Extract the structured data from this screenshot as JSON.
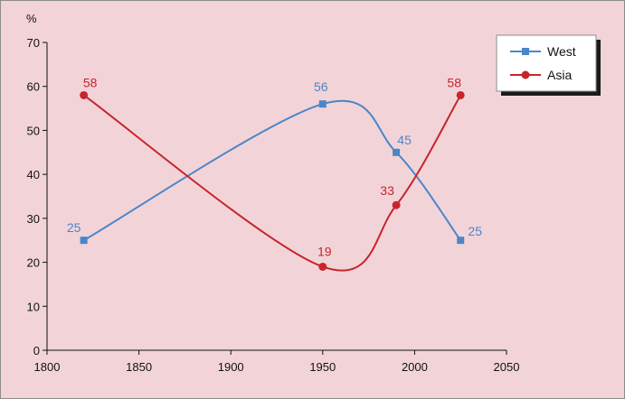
{
  "chart_data": {
    "type": "line",
    "ylabel": "%",
    "xlim": [
      1800,
      2050
    ],
    "ylim": [
      0,
      70
    ],
    "x_ticks": [
      1800,
      1850,
      1900,
      1950,
      2000,
      2050
    ],
    "y_ticks": [
      0,
      10,
      20,
      30,
      40,
      50,
      60,
      70
    ],
    "grid": false,
    "legend_position": "top-right",
    "series": [
      {
        "name": "West",
        "color": "#4a86c8",
        "marker": "square",
        "points": [
          {
            "x": 1820,
            "y": 25,
            "label": "25"
          },
          {
            "x": 1950,
            "y": 56,
            "label": "56"
          },
          {
            "x": 1990,
            "y": 45,
            "label": "45"
          },
          {
            "x": 2025,
            "y": 25,
            "label": "25"
          }
        ]
      },
      {
        "name": "Asia",
        "color": "#c8242c",
        "marker": "circle",
        "points": [
          {
            "x": 1820,
            "y": 58,
            "label": "58"
          },
          {
            "x": 1950,
            "y": 19,
            "label": "19"
          },
          {
            "x": 1990,
            "y": 33,
            "label": "33"
          },
          {
            "x": 2025,
            "y": 58,
            "label": "58"
          }
        ]
      }
    ]
  }
}
